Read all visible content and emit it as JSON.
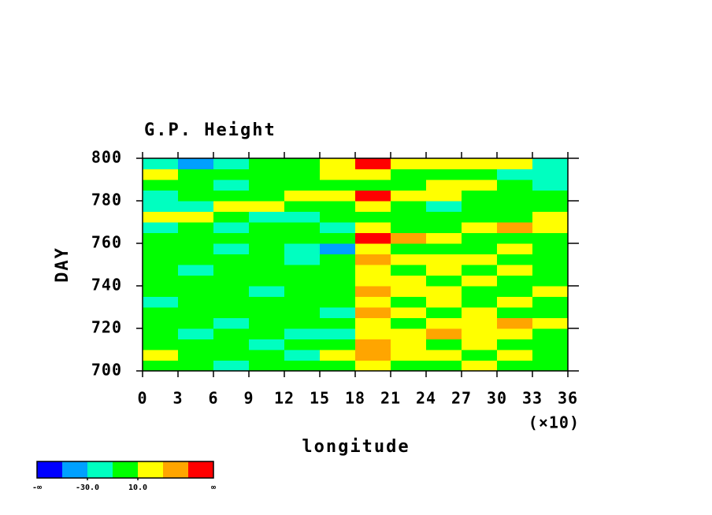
{
  "chart_data": {
    "type": "heatmap",
    "title": "G.P. Height",
    "x_label": "longitude",
    "x_multiplier": "(×10)",
    "y_label": "DAY",
    "xlim": [
      0,
      36
    ],
    "xticks": [
      0,
      3,
      6,
      9,
      12,
      15,
      18,
      21,
      24,
      27,
      30,
      33,
      36
    ],
    "ylim": [
      700,
      800
    ],
    "yticks": [
      700,
      720,
      740,
      760,
      780,
      800
    ],
    "xbins": [
      0,
      3,
      6,
      9,
      12,
      15,
      18,
      21,
      24,
      27,
      30,
      33,
      36
    ],
    "ybins": [
      700,
      705,
      710,
      715,
      720,
      725,
      730,
      735,
      740,
      745,
      750,
      755,
      760,
      765,
      770,
      775,
      780,
      785,
      790,
      795,
      800
    ],
    "z": [
      [
        0,
        0,
        -20,
        0,
        0,
        0,
        20,
        0,
        0,
        20,
        0,
        0
      ],
      [
        20,
        0,
        0,
        0,
        -20,
        20,
        40,
        20,
        20,
        0,
        20,
        0
      ],
      [
        0,
        0,
        0,
        -20,
        0,
        0,
        40,
        20,
        0,
        20,
        0,
        0
      ],
      [
        0,
        -20,
        0,
        0,
        -20,
        -20,
        20,
        20,
        40,
        20,
        20,
        0
      ],
      [
        0,
        0,
        -20,
        0,
        0,
        0,
        20,
        0,
        20,
        20,
        40,
        20
      ],
      [
        0,
        0,
        0,
        0,
        0,
        -20,
        40,
        20,
        0,
        20,
        0,
        0
      ],
      [
        -20,
        0,
        0,
        0,
        0,
        0,
        20,
        0,
        20,
        0,
        20,
        0
      ],
      [
        0,
        0,
        0,
        -20,
        0,
        0,
        40,
        20,
        20,
        0,
        0,
        20
      ],
      [
        0,
        0,
        0,
        0,
        0,
        0,
        20,
        20,
        0,
        20,
        0,
        0
      ],
      [
        0,
        -20,
        0,
        0,
        0,
        0,
        20,
        0,
        20,
        0,
        20,
        0
      ],
      [
        0,
        0,
        0,
        0,
        -20,
        0,
        40,
        20,
        20,
        20,
        0,
        0
      ],
      [
        0,
        0,
        -20,
        0,
        -20,
        -40,
        20,
        0,
        0,
        0,
        20,
        0
      ],
      [
        0,
        0,
        0,
        0,
        0,
        0,
        60,
        40,
        20,
        0,
        0,
        0
      ],
      [
        -20,
        0,
        -20,
        0,
        0,
        -20,
        20,
        0,
        0,
        20,
        40,
        20
      ],
      [
        20,
        20,
        0,
        -20,
        -20,
        0,
        0,
        0,
        0,
        0,
        0,
        20
      ],
      [
        -20,
        -20,
        20,
        20,
        0,
        0,
        20,
        0,
        -20,
        0,
        0,
        0
      ],
      [
        -20,
        0,
        0,
        0,
        20,
        20,
        60,
        20,
        20,
        0,
        0,
        0
      ],
      [
        0,
        0,
        -20,
        0,
        0,
        0,
        0,
        0,
        20,
        20,
        0,
        -20
      ],
      [
        20,
        0,
        0,
        0,
        0,
        20,
        20,
        0,
        0,
        0,
        -20,
        -20
      ],
      [
        -20,
        -40,
        -20,
        0,
        0,
        20,
        60,
        20,
        20,
        20,
        20,
        -20
      ]
    ],
    "levels": [
      -50,
      -30,
      -10,
      10,
      30,
      50
    ],
    "colors": [
      "#0000ff",
      "#00a0ff",
      "#00ffc0",
      "#00ff00",
      "#ffff00",
      "#ffa500",
      "#ff0000"
    ],
    "colorbar": {
      "min_label": "-∞",
      "max_label": "∞",
      "ticks": [
        {
          "value": -30,
          "label": "-30.0"
        },
        {
          "value": 10,
          "label": "10.0"
        }
      ]
    }
  }
}
